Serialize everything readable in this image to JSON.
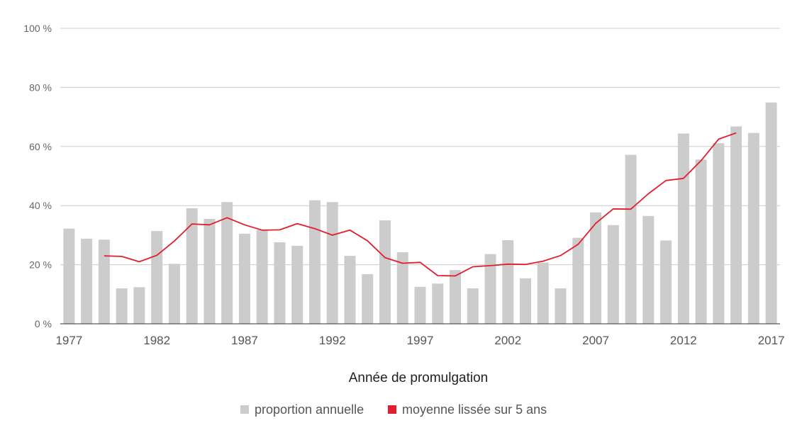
{
  "chart_data": {
    "type": "bar",
    "title": "",
    "xlabel": "Année de promulgation",
    "ylabel": "",
    "ylim": [
      0,
      100
    ],
    "y_ticks": [
      "0 %",
      "20 %",
      "40 %",
      "60 %",
      "80 %",
      "100 %"
    ],
    "y_tick_values": [
      0,
      20,
      40,
      60,
      80,
      100
    ],
    "x": [
      1977,
      1978,
      1979,
      1980,
      1981,
      1982,
      1983,
      1984,
      1985,
      1986,
      1987,
      1988,
      1989,
      1990,
      1991,
      1992,
      1993,
      1994,
      1995,
      1996,
      1997,
      1998,
      1999,
      2000,
      2001,
      2002,
      2003,
      2004,
      2005,
      2006,
      2007,
      2008,
      2009,
      2010,
      2011,
      2012,
      2013,
      2014,
      2015,
      2016,
      2017
    ],
    "x_tick_labels": [
      "1977",
      "1982",
      "1987",
      "1992",
      "1997",
      "2002",
      "2007",
      "2012",
      "2017"
    ],
    "grid": true,
    "legend_position": "bottom",
    "series": [
      {
        "name": "proportion annuelle",
        "type": "bar",
        "color": "#cccccc",
        "values": [
          32.2,
          28.8,
          28.5,
          12.0,
          12.4,
          31.4,
          20.3,
          39.1,
          35.5,
          41.2,
          30.5,
          31.8,
          27.6,
          26.4,
          41.8,
          41.2,
          23.0,
          16.8,
          35.0,
          24.2,
          12.5,
          13.6,
          18.2,
          12.0,
          23.6,
          28.3,
          15.4,
          20.7,
          12.0,
          29.1,
          37.7,
          33.4,
          57.2,
          36.5,
          28.2,
          64.4,
          55.6,
          61.1,
          66.8,
          64.6,
          74.9
        ]
      },
      {
        "name": "moyenne lissée sur 5 ans",
        "type": "line",
        "color": "#e31c2e",
        "values": [
          null,
          null,
          23.0,
          22.8,
          21.0,
          23.2,
          28.0,
          33.8,
          33.5,
          35.9,
          33.5,
          31.7,
          31.8,
          33.9,
          32.2,
          30.0,
          31.7,
          28.1,
          22.4,
          20.5,
          20.8,
          16.3,
          16.2,
          19.3,
          19.7,
          20.2,
          20.1,
          21.2,
          23.1,
          26.9,
          34.0,
          38.9,
          38.8,
          44.0,
          48.5,
          49.2,
          55.2,
          62.5,
          64.6,
          null,
          null
        ]
      }
    ]
  }
}
